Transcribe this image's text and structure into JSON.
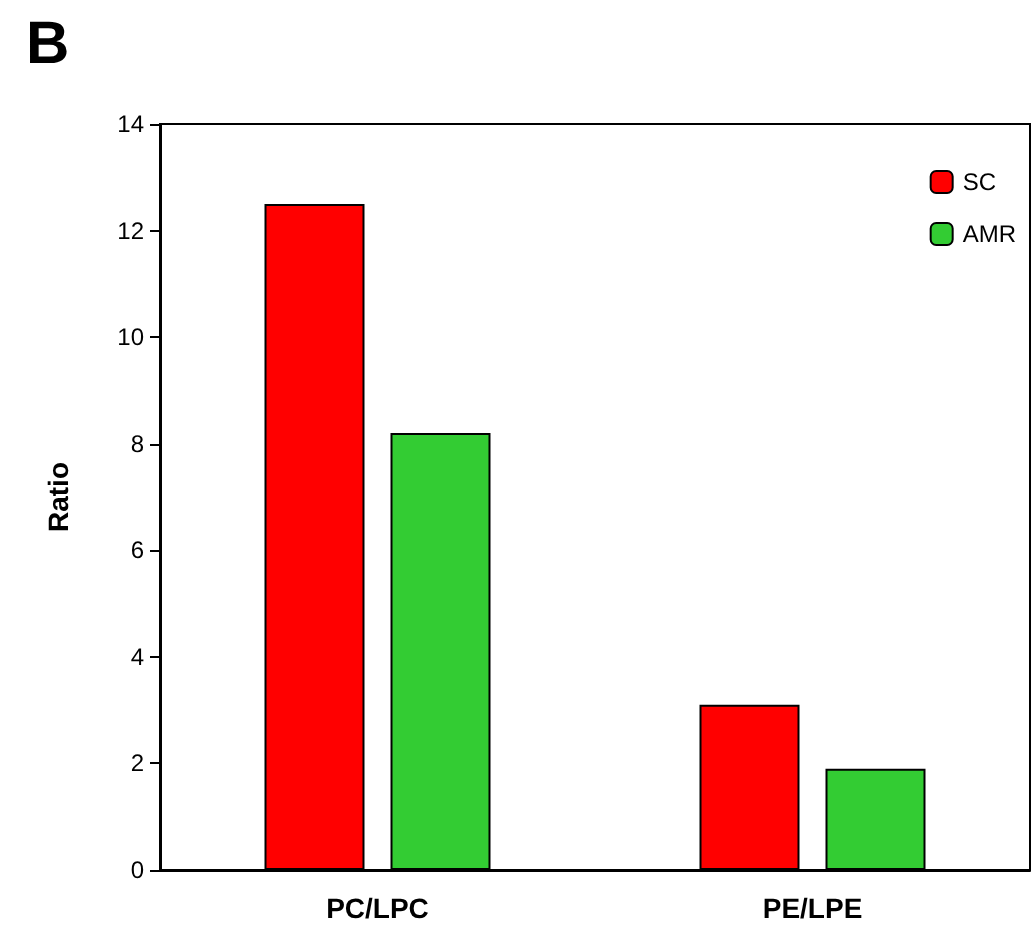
{
  "chart_data": {
    "type": "bar",
    "title": "B",
    "ylabel": "Ratio",
    "categories": [
      "PC/LPC",
      "PE/LPE"
    ],
    "series": [
      {
        "name": "SC",
        "color": "#ff0000",
        "values": [
          12.5,
          3.1
        ]
      },
      {
        "name": "AMR",
        "color": "#33cc33",
        "values": [
          8.2,
          1.9
        ]
      }
    ],
    "ylim": [
      0,
      14
    ],
    "yticks": [
      0,
      2,
      4,
      6,
      8,
      10,
      12,
      14
    ],
    "grid": false,
    "legend": "top right"
  }
}
